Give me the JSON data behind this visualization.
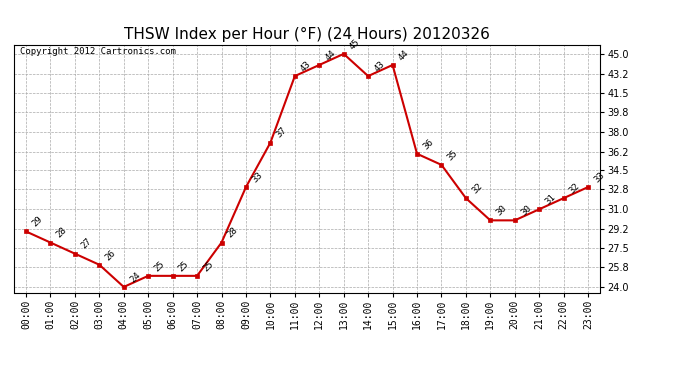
{
  "title": "THSW Index per Hour (°F) (24 Hours) 20120326",
  "copyright_text": "Copyright 2012 Cartronics.com",
  "hours": [
    0,
    1,
    2,
    3,
    4,
    5,
    6,
    7,
    8,
    9,
    10,
    11,
    12,
    13,
    14,
    15,
    16,
    17,
    18,
    19,
    20,
    21,
    22,
    23
  ],
  "values": [
    29,
    28,
    27,
    26,
    24,
    25,
    25,
    25,
    28,
    33,
    37,
    43,
    44,
    45,
    43,
    44,
    36,
    35,
    32,
    30,
    30,
    31,
    32,
    33
  ],
  "x_labels": [
    "00:00",
    "01:00",
    "02:00",
    "03:00",
    "04:00",
    "05:00",
    "06:00",
    "07:00",
    "08:00",
    "09:00",
    "10:00",
    "11:00",
    "12:00",
    "13:00",
    "14:00",
    "15:00",
    "16:00",
    "17:00",
    "18:00",
    "19:00",
    "20:00",
    "21:00",
    "22:00",
    "23:00"
  ],
  "y_ticks": [
    24.0,
    25.8,
    27.5,
    29.2,
    31.0,
    32.8,
    34.5,
    36.2,
    38.0,
    39.8,
    41.5,
    43.2,
    45.0
  ],
  "ylim": [
    23.5,
    45.8
  ],
  "line_color": "#cc0000",
  "marker_color": "#cc0000",
  "bg_color": "#ffffff",
  "grid_color": "#aaaaaa",
  "title_fontsize": 11,
  "label_fontsize": 7,
  "annot_fontsize": 6.5,
  "copyright_fontsize": 6.5
}
